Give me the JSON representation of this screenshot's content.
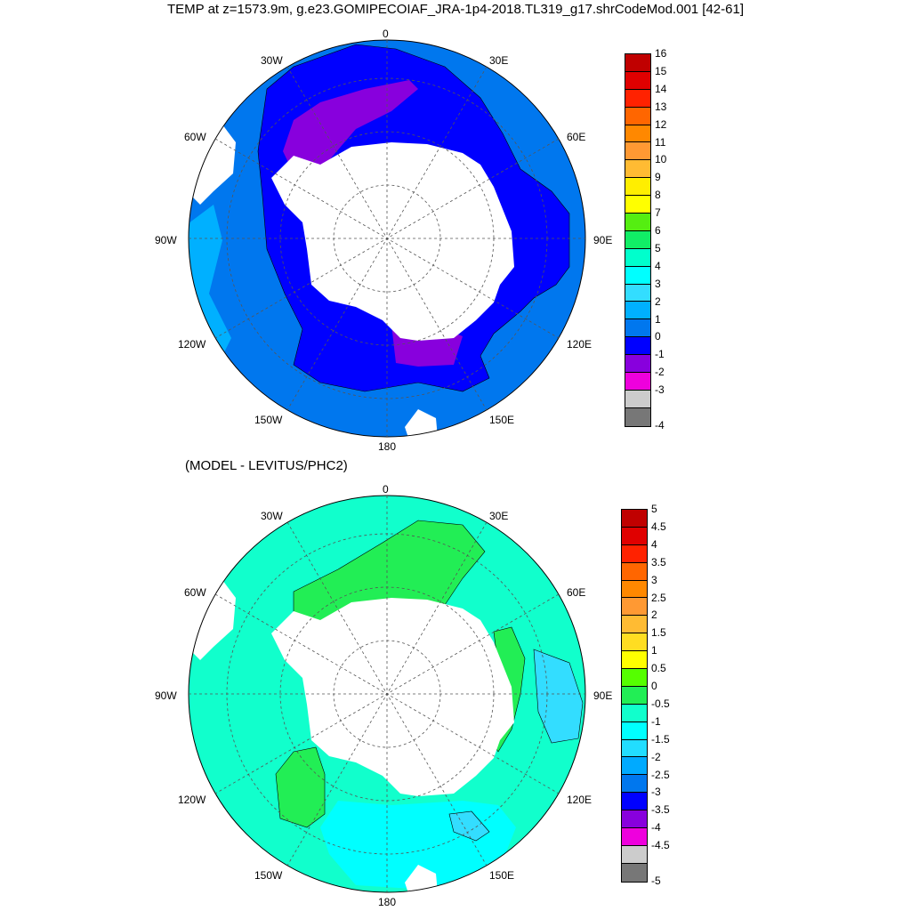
{
  "title": "TEMP at z=1573.9m, g.e23.GOMIPECOIAF_JRA-1p4-2018.TL319_g17.shrCodeMod.001 [42-61]",
  "subtitle": "(MODEL - LEVITUS/PHC2)",
  "lon_labels": [
    "0",
    "30E",
    "60E",
    "90E",
    "120E",
    "150E",
    "180",
    "150W",
    "120W",
    "90W",
    "60W",
    "30W"
  ],
  "top_colorbar": {
    "labels": [
      "16",
      "15",
      "14",
      "13",
      "12",
      "11",
      "10",
      "9",
      "8",
      "7",
      "6",
      "5",
      "4",
      "3",
      "2",
      "1",
      "0",
      "-1",
      "-2",
      "-3",
      "-4"
    ],
    "colors": [
      "#c00000",
      "#e00000",
      "#ff2200",
      "#ff6600",
      "#ff8800",
      "#ff9933",
      "#ffbb33",
      "#ffee00",
      "#ffff00",
      "#55ee11",
      "#11ee66",
      "#00ffcc",
      "#00ffff",
      "#33ddff",
      "#00b0ff",
      "#0077ee",
      "#0000ff",
      "#8800dd",
      "#ee00dd",
      "#cccccc",
      "#777777"
    ]
  },
  "bottom_colorbar": {
    "labels": [
      "5",
      "4.5",
      "4",
      "3.5",
      "3",
      "2.5",
      "2",
      "1.5",
      "1",
      "0.5",
      "0",
      "-0.5",
      "-1",
      "-1.5",
      "-2",
      "-2.5",
      "-3",
      "-3.5",
      "-4",
      "-4.5",
      "-5"
    ],
    "colors": [
      "#c00000",
      "#e00000",
      "#ff2200",
      "#ff6600",
      "#ff8800",
      "#ff9933",
      "#ffbb33",
      "#ffdd22",
      "#ffff00",
      "#55ff00",
      "#22ee55",
      "#11ffcc",
      "#00ffff",
      "#22ddff",
      "#00aaff",
      "#0077ee",
      "#0000ff",
      "#8800dd",
      "#ee00dd",
      "#cccccc",
      "#777777"
    ]
  },
  "map_colors": {
    "top_outer": "#0077ee",
    "top_mid": "#0000ff",
    "top_cold": "#8800dd",
    "top_warm_edge": "#00b0ff",
    "bottom_base": "#11ffcc",
    "bottom_pos": "#22ee55",
    "bottom_neg": "#00ffff",
    "bottom_neg2": "#33ddff",
    "land": "#ffffff"
  }
}
